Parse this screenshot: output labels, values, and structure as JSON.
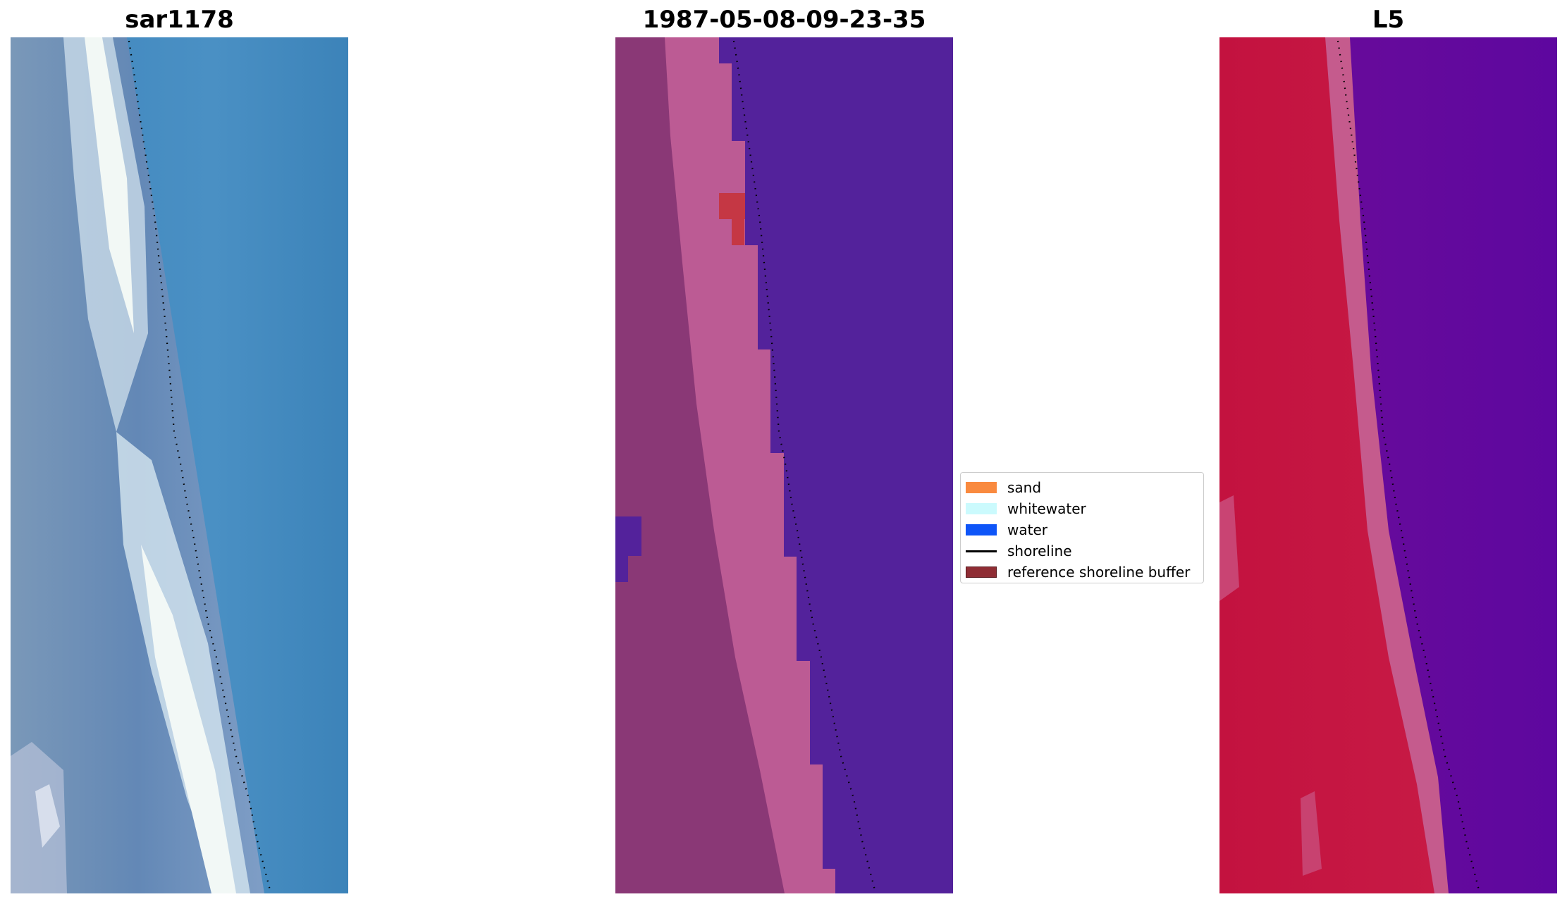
{
  "panels": [
    {
      "id": "rgb",
      "title": "sar1178"
    },
    {
      "id": "classification",
      "title": "1987-05-08-09-23-35"
    },
    {
      "id": "index",
      "title": "L5"
    }
  ],
  "legend": {
    "items": [
      {
        "label": "sand",
        "color": "#f98a3f",
        "kind": "patch"
      },
      {
        "label": "whitewater",
        "color": "#cbfafd",
        "kind": "patch"
      },
      {
        "label": "water",
        "color": "#0e55f8",
        "kind": "patch"
      },
      {
        "label": "shoreline",
        "color": "#000000",
        "kind": "line"
      },
      {
        "label": "reference shoreline buffer",
        "color": "#8f2d34",
        "kind": "patch"
      }
    ]
  },
  "colors": {
    "shoreline": "#000000",
    "rgb_water": "#3e86bd",
    "rgb_land": "#6f8db5",
    "rgb_whitewater": "#f2f8f6",
    "class_water": "#53229b",
    "class_land": "#8a3876",
    "class_band": "#bc5b94",
    "class_buffer": "#c53744",
    "index_land": "#c41341",
    "index_band": "#c55b8d",
    "index_water": "#640a9c"
  }
}
